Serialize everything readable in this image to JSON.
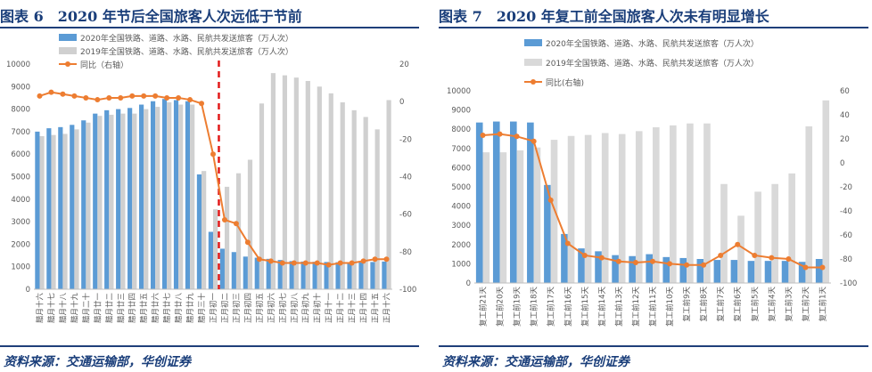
{
  "figures": [
    {
      "title": "图表 6　2020 年节后全国旅客人次远低于节前",
      "source": "资料来源：交通运输部，华创证券"
    },
    {
      "title": "图表 7　2020 年复工前全国旅客人次未有明显增长",
      "source": "资料来源：交通运输部，华创证券"
    }
  ],
  "chart_data": [
    {
      "type": "bar",
      "categories": [
        "腊月十六",
        "腊月十七",
        "腊月十八",
        "腊月十九",
        "腊月二十",
        "腊月廿一",
        "腊月廿二",
        "腊月廿三",
        "腊月廿四",
        "腊月廿五",
        "腊月廿六",
        "腊月廿七",
        "腊月廿八",
        "腊月廿九",
        "腊月三十",
        "正月初一",
        "正月初二",
        "正月初三",
        "正月初四",
        "正月初五",
        "正月初六",
        "正月初七",
        "正月初八",
        "正月初九",
        "正月初十",
        "正月十一",
        "正月十二",
        "正月十三",
        "正月十四",
        "正月十五",
        "正月十六"
      ],
      "series": [
        {
          "name": "2020年全国铁路、道路、水路、民航共发送旅客（万人次）",
          "kind": "bar",
          "axis": "left",
          "color": "#5b9bd5",
          "values": [
            7000,
            7150,
            7200,
            7300,
            7500,
            7800,
            7950,
            8000,
            8050,
            8200,
            8350,
            8450,
            8400,
            8350,
            5100,
            2550,
            1800,
            1650,
            1450,
            1400,
            1350,
            1300,
            1250,
            1230,
            1220,
            1210,
            1200,
            1200,
            1200,
            1210,
            1230
          ]
        },
        {
          "name": "2019年全国铁路、道路、水路、民航共发送旅客（万人次）",
          "kind": "bar",
          "axis": "left",
          "color": "#d0d0d0",
          "values": [
            6800,
            6850,
            6900,
            7100,
            7400,
            7700,
            7750,
            7800,
            7800,
            8000,
            8100,
            8300,
            8200,
            8200,
            5250,
            3550,
            4550,
            5150,
            5750,
            8250,
            9600,
            9500,
            9400,
            9250,
            9000,
            8700,
            8300,
            7950,
            7650,
            7100,
            8400
          ]
        },
        {
          "name": "同比（右轴）",
          "kind": "line",
          "axis": "right",
          "color": "#ed7d31",
          "values": [
            3,
            5,
            4,
            3,
            2,
            1,
            2,
            2,
            3,
            3,
            3,
            2,
            2,
            1,
            -1,
            -28,
            -63,
            -65,
            -75,
            -84,
            -85,
            -86,
            -86,
            -86,
            -86,
            -87,
            -86,
            -86,
            -85,
            -84,
            -84
          ]
        }
      ],
      "ylim": [
        0,
        10000
      ],
      "yticks": [
        0,
        1000,
        2000,
        3000,
        4000,
        5000,
        6000,
        7000,
        8000,
        9000,
        10000
      ],
      "y2lim": [
        -100,
        20
      ],
      "y2ticks": [
        -100,
        -80,
        -60,
        -40,
        -20,
        0,
        20
      ],
      "marker": {
        "after_category": "正月初一",
        "style": "red-dashed"
      },
      "legend": "top-left"
    },
    {
      "type": "bar",
      "categories": [
        "复工前21天",
        "复工前20天",
        "复工前19天",
        "复工前18天",
        "复工前17天",
        "复工前16天",
        "复工前15天",
        "复工前14天",
        "复工前13天",
        "复工前12天",
        "复工前11天",
        "复工前10天",
        "复工前9天",
        "复工前8天",
        "复工前7天",
        "复工前6天",
        "复工前5天",
        "复工前4天",
        "复工前3天",
        "复工前2天",
        "复工前1天"
      ],
      "series": [
        {
          "name": "2020年全国铁路、道路、水路、民航共发送旅客（万人次）",
          "kind": "bar",
          "axis": "left",
          "color": "#5b9bd5",
          "values": [
            8350,
            8400,
            8400,
            8350,
            5100,
            2550,
            1800,
            1650,
            1450,
            1400,
            1500,
            1350,
            1300,
            1250,
            1200,
            1200,
            1150,
            1150,
            1150,
            1100,
            1250
          ]
        },
        {
          "name": "2019年全国铁路、道路、水路、民航共发送旅客（万人次）",
          "kind": "bar",
          "axis": "left",
          "color": "#d9d9d9",
          "values": [
            6800,
            6800,
            6900,
            7050,
            7450,
            7650,
            7700,
            7800,
            7750,
            7900,
            8100,
            8200,
            8300,
            8300,
            5150,
            3500,
            4750,
            5150,
            5700,
            8150,
            9500
          ]
        },
        {
          "name": "同比(右轴)",
          "kind": "line",
          "axis": "right",
          "color": "#ed7d31",
          "values": [
            23,
            24,
            22,
            18,
            -31,
            -67,
            -77,
            -79,
            -82,
            -83,
            -82,
            -84,
            -85,
            -85,
            -77,
            -68,
            -77,
            -79,
            -80,
            -87,
            -87
          ]
        }
      ],
      "ylim": [
        0,
        10000
      ],
      "yticks": [
        0,
        1000,
        2000,
        3000,
        4000,
        5000,
        6000,
        7000,
        8000,
        9000,
        10000
      ],
      "y2lim": [
        -100,
        60
      ],
      "y2ticks": [
        -100,
        -80,
        -60,
        -40,
        -20,
        0,
        20,
        40,
        60
      ],
      "legend": "top-left"
    }
  ]
}
